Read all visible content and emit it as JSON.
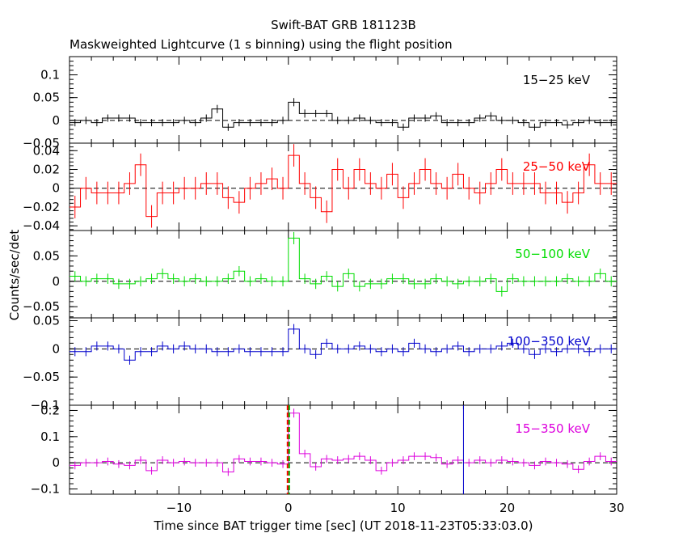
{
  "chart_data": {
    "type": "line",
    "title": "Swift-BAT GRB 181123B",
    "subtitle": "Maskweighted Lightcurve (1 s binning) using the flight position",
    "xlabel": "Time since BAT trigger time [sec] (UT 2018-11-23T05:33:03.0)",
    "ylabel": "Counts/sec/det",
    "xlim": [
      -20,
      30
    ],
    "x_ticks": [
      -10,
      0,
      10,
      20,
      30
    ],
    "x": [
      -19.5,
      -18.5,
      -17.5,
      -16.5,
      -15.5,
      -14.5,
      -13.5,
      -12.5,
      -11.5,
      -10.5,
      -9.5,
      -8.5,
      -7.5,
      -6.5,
      -5.5,
      -4.5,
      -3.5,
      -2.5,
      -1.5,
      -0.5,
      0.5,
      1.5,
      2.5,
      3.5,
      4.5,
      5.5,
      6.5,
      7.5,
      8.5,
      9.5,
      10.5,
      11.5,
      12.5,
      13.5,
      14.5,
      15.5,
      16.5,
      17.5,
      18.5,
      19.5,
      20.5,
      21.5,
      22.5,
      23.5,
      24.5,
      25.5,
      26.5,
      27.5,
      28.5,
      29.5
    ],
    "markers": [
      {
        "x": 0,
        "color": "#ff0000",
        "style": "dashed"
      },
      {
        "x": 0,
        "color": "#00aa00",
        "style": "dashed"
      },
      {
        "x": 16,
        "color": "#0000cc",
        "style": "solid"
      }
    ],
    "panels": [
      {
        "name": "15-25 keV",
        "label": "15−25 keV",
        "color": "#000000",
        "ylim": [
          -0.05,
          0.14
        ],
        "y_ticks": [
          {
            "v": -0.05,
            "t": "−0.05"
          },
          {
            "v": 0,
            "t": "0"
          },
          {
            "v": 0.05,
            "t": "0.05"
          },
          {
            "v": 0.1,
            "t": "0.1"
          }
        ],
        "values": [
          -0.005,
          0,
          -0.005,
          0.005,
          0.005,
          0.005,
          -0.005,
          -0.005,
          -0.005,
          -0.005,
          0,
          -0.005,
          0.005,
          0.025,
          -0.015,
          -0.005,
          -0.005,
          -0.005,
          -0.005,
          0,
          0.04,
          0.015,
          0.015,
          0.015,
          0,
          0,
          0.005,
          0,
          -0.005,
          -0.005,
          -0.015,
          0.005,
          0.005,
          0.01,
          -0.005,
          -0.005,
          -0.005,
          0.005,
          0.01,
          0,
          0,
          -0.005,
          -0.015,
          -0.005,
          -0.005,
          -0.01,
          -0.005,
          0,
          -0.005,
          -0.005
        ],
        "errors": [
          0.008,
          0.008,
          0.008,
          0.008,
          0.008,
          0.008,
          0.008,
          0.008,
          0.008,
          0.008,
          0.008,
          0.008,
          0.008,
          0.009,
          0.008,
          0.008,
          0.008,
          0.008,
          0.008,
          0.008,
          0.009,
          0.009,
          0.008,
          0.008,
          0.008,
          0.008,
          0.008,
          0.008,
          0.008,
          0.008,
          0.008,
          0.008,
          0.008,
          0.008,
          0.008,
          0.008,
          0.008,
          0.008,
          0.008,
          0.008,
          0.008,
          0.008,
          0.008,
          0.008,
          0.008,
          0.008,
          0.008,
          0.008,
          0.008,
          0.008
        ]
      },
      {
        "name": "25-50 keV",
        "label": "25−50 keV",
        "color": "#ff0000",
        "ylim": [
          -0.045,
          0.048
        ],
        "y_ticks": [
          {
            "v": -0.04,
            "t": "−0.04"
          },
          {
            "v": -0.02,
            "t": "−0.02"
          },
          {
            "v": 0,
            "t": "0"
          },
          {
            "v": 0.02,
            "t": "0.02"
          },
          {
            "v": 0.04,
            "t": "0.04"
          }
        ],
        "values": [
          -0.02,
          0,
          -0.005,
          -0.005,
          -0.005,
          0.005,
          0.025,
          -0.03,
          -0.005,
          -0.005,
          0,
          0,
          0.005,
          0.005,
          -0.01,
          -0.015,
          0,
          0.005,
          0.01,
          0,
          0.035,
          0.005,
          -0.01,
          -0.025,
          0.02,
          0,
          0.02,
          0.005,
          0,
          0.015,
          -0.01,
          0.005,
          0.02,
          0.005,
          0,
          0.015,
          0,
          -0.005,
          0.005,
          0.02,
          0.005,
          0.005,
          0.005,
          -0.005,
          -0.005,
          -0.015,
          -0.005,
          0.025,
          0.005,
          0.005
        ],
        "errors": [
          0.012,
          0.012,
          0.012,
          0.012,
          0.012,
          0.012,
          0.012,
          0.012,
          0.012,
          0.012,
          0.012,
          0.012,
          0.012,
          0.012,
          0.012,
          0.012,
          0.012,
          0.012,
          0.012,
          0.012,
          0.012,
          0.012,
          0.012,
          0.012,
          0.012,
          0.012,
          0.012,
          0.012,
          0.012,
          0.012,
          0.012,
          0.012,
          0.012,
          0.012,
          0.012,
          0.012,
          0.012,
          0.012,
          0.012,
          0.012,
          0.012,
          0.012,
          0.012,
          0.012,
          0.012,
          0.012,
          0.012,
          0.012,
          0.012,
          0.012
        ]
      },
      {
        "name": "50-100 keV",
        "label": "50−100 keV",
        "color": "#00dd00",
        "ylim": [
          -0.072,
          0.1
        ],
        "y_ticks": [
          {
            "v": -0.05,
            "t": "−0.05"
          },
          {
            "v": 0,
            "t": "0"
          },
          {
            "v": 0.05,
            "t": "0.05"
          }
        ],
        "values": [
          0.01,
          0,
          0.005,
          0.005,
          -0.005,
          -0.005,
          0,
          0.005,
          0.015,
          0.005,
          0,
          0.005,
          0,
          0,
          0.005,
          0.02,
          0,
          0.005,
          0,
          0,
          0.085,
          0.005,
          -0.005,
          0.01,
          -0.01,
          0.015,
          -0.01,
          -0.005,
          -0.005,
          0.005,
          0.005,
          -0.005,
          -0.005,
          0.005,
          0,
          -0.005,
          0,
          0,
          0.005,
          -0.02,
          0.005,
          0,
          0,
          0,
          0,
          0.005,
          0,
          0,
          0.015,
          0
        ],
        "errors": [
          0.01,
          0.01,
          0.01,
          0.01,
          0.01,
          0.01,
          0.01,
          0.01,
          0.01,
          0.01,
          0.01,
          0.01,
          0.01,
          0.01,
          0.01,
          0.01,
          0.01,
          0.01,
          0.01,
          0.01,
          0.012,
          0.01,
          0.01,
          0.01,
          0.01,
          0.01,
          0.01,
          0.01,
          0.01,
          0.01,
          0.01,
          0.01,
          0.01,
          0.01,
          0.01,
          0.01,
          0.01,
          0.01,
          0.01,
          0.01,
          0.01,
          0.01,
          0.01,
          0.01,
          0.01,
          0.01,
          0.01,
          0.01,
          0.01,
          0.01
        ]
      },
      {
        "name": "100-350 keV",
        "label": "100−350 keV",
        "color": "#0000cc",
        "ylim": [
          -0.1,
          0.055
        ],
        "y_ticks": [
          {
            "v": -0.1,
            "t": "−0.1"
          },
          {
            "v": -0.05,
            "t": "−0.05"
          },
          {
            "v": 0,
            "t": "0"
          },
          {
            "v": 0.05,
            "t": "0.05"
          }
        ],
        "values": [
          -0.005,
          -0.005,
          0.005,
          0.005,
          0,
          -0.02,
          -0.005,
          -0.005,
          0.005,
          0,
          0.005,
          0,
          0,
          -0.005,
          -0.005,
          0,
          -0.005,
          -0.005,
          -0.005,
          -0.005,
          0.035,
          0,
          -0.01,
          0.01,
          0,
          0,
          0.005,
          0,
          -0.005,
          0,
          -0.005,
          0.01,
          0,
          -0.005,
          0,
          0.005,
          -0.005,
          0,
          0,
          0.005,
          0.01,
          0,
          -0.01,
          0,
          -0.005,
          0,
          0,
          -0.005,
          0,
          0
        ],
        "errors": [
          0.008,
          0.008,
          0.008,
          0.008,
          0.008,
          0.008,
          0.008,
          0.008,
          0.008,
          0.008,
          0.008,
          0.008,
          0.008,
          0.008,
          0.008,
          0.008,
          0.008,
          0.008,
          0.008,
          0.008,
          0.009,
          0.008,
          0.008,
          0.008,
          0.008,
          0.008,
          0.008,
          0.008,
          0.008,
          0.008,
          0.008,
          0.008,
          0.008,
          0.008,
          0.008,
          0.008,
          0.008,
          0.008,
          0.008,
          0.008,
          0.008,
          0.008,
          0.008,
          0.008,
          0.008,
          0.008,
          0.008,
          0.008,
          0.008,
          0.008
        ]
      },
      {
        "name": "15-350 keV",
        "label": "15−350 keV",
        "color": "#dd00dd",
        "ylim": [
          -0.12,
          0.22
        ],
        "y_ticks": [
          {
            "v": -0.1,
            "t": "−0.1"
          },
          {
            "v": 0,
            "t": "0"
          },
          {
            "v": 0.1,
            "t": "0.1"
          },
          {
            "v": 0.2,
            "t": "0.2"
          }
        ],
        "values": [
          -0.01,
          0,
          0,
          0.005,
          -0.005,
          -0.01,
          0.01,
          -0.03,
          0.01,
          0,
          0.005,
          0,
          0,
          0,
          -0.035,
          0.015,
          0.005,
          0.005,
          0,
          -0.005,
          0.19,
          0.035,
          -0.015,
          0.015,
          0.01,
          0.015,
          0.025,
          0.01,
          -0.03,
          0,
          0.01,
          0.025,
          0.025,
          0.02,
          -0.005,
          0.01,
          0,
          0.01,
          0,
          0.01,
          0.005,
          0,
          -0.01,
          0.005,
          0,
          -0.005,
          -0.025,
          0.005,
          0.025,
          0.005
        ],
        "errors": [
          0.015,
          0.015,
          0.015,
          0.015,
          0.015,
          0.015,
          0.015,
          0.015,
          0.015,
          0.015,
          0.015,
          0.015,
          0.015,
          0.015,
          0.015,
          0.015,
          0.015,
          0.015,
          0.015,
          0.015,
          0.017,
          0.015,
          0.015,
          0.015,
          0.015,
          0.015,
          0.015,
          0.015,
          0.015,
          0.015,
          0.015,
          0.015,
          0.015,
          0.015,
          0.015,
          0.015,
          0.015,
          0.015,
          0.015,
          0.015,
          0.015,
          0.015,
          0.015,
          0.015,
          0.015,
          0.015,
          0.015,
          0.015,
          0.015,
          0.015
        ]
      }
    ]
  }
}
